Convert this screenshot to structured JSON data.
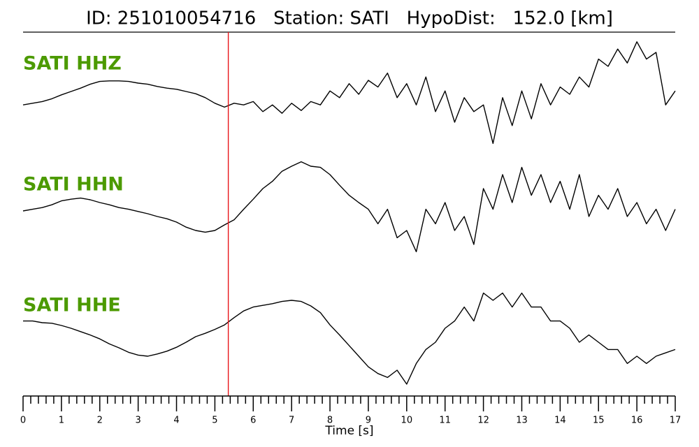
{
  "chart_data": {
    "type": "line",
    "title": "ID: 251010054716   Station: SATI   HypoDist:   152.0 [km]",
    "x_label": "Time [s]",
    "xlim": [
      0,
      17
    ],
    "ylim": [
      -1,
      1
    ],
    "xticks": [
      0,
      1,
      2,
      3,
      4,
      5,
      6,
      7,
      8,
      9,
      10,
      11,
      12,
      13,
      14,
      15,
      16,
      17
    ],
    "xminorticks": [
      0.2,
      0.4,
      0.6,
      0.8,
      1.2,
      1.4,
      1.6,
      1.8,
      2.2,
      2.4,
      2.6,
      2.8,
      3.2,
      3.4,
      3.6,
      3.8,
      4.2,
      4.4,
      4.6,
      4.8,
      5.2,
      5.4,
      5.6,
      5.8,
      6.2,
      6.4,
      6.6,
      6.8,
      7.2,
      7.4,
      7.6,
      7.8,
      8.2,
      8.4,
      8.6,
      8.8,
      9.2,
      9.4,
      9.6,
      9.8,
      10.2,
      10.4,
      10.6,
      10.8,
      11.2,
      11.4,
      11.6,
      11.8,
      12.2,
      12.4,
      12.6,
      12.8,
      13.2,
      13.4,
      13.6,
      13.8,
      14.2,
      14.4,
      14.6,
      14.8,
      15.2,
      15.4,
      15.6,
      15.8,
      16.2,
      16.4,
      16.6,
      16.8
    ],
    "pick": {
      "x": 5.35,
      "color": "#e8161b"
    },
    "label_color": "#4c9a00",
    "x": [
      0,
      0.25,
      0.5,
      0.75,
      1,
      1.25,
      1.5,
      1.75,
      2,
      2.25,
      2.5,
      2.75,
      3,
      3.25,
      3.5,
      3.75,
      4,
      4.25,
      4.5,
      4.75,
      5,
      5.25,
      5.5,
      5.75,
      6,
      6.25,
      6.5,
      6.75,
      7,
      7.25,
      7.5,
      7.75,
      8,
      8.25,
      8.5,
      8.75,
      9,
      9.25,
      9.5,
      9.75,
      10,
      10.25,
      10.5,
      10.75,
      11,
      11.25,
      11.5,
      11.75,
      12,
      12.25,
      12.5,
      12.75,
      13,
      13.25,
      13.5,
      13.75,
      14,
      14.25,
      14.5,
      14.75,
      15,
      15.25,
      15.5,
      15.75,
      16,
      16.25,
      16.5,
      16.75,
      17
    ],
    "series": [
      {
        "name": "SATI HHZ",
        "color": "#000000",
        "values": [
          -0.19,
          -0.16,
          -0.13,
          -0.08,
          -0.01,
          0.05,
          0.11,
          0.18,
          0.23,
          0.24,
          0.24,
          0.23,
          0.2,
          0.18,
          0.14,
          0.11,
          0.09,
          0.05,
          0.01,
          -0.06,
          -0.16,
          -0.23,
          -0.16,
          -0.19,
          -0.13,
          -0.31,
          -0.19,
          -0.34,
          -0.16,
          -0.29,
          -0.13,
          -0.19,
          0.06,
          -0.06,
          0.19,
          0,
          0.25,
          0.13,
          0.38,
          -0.06,
          0.19,
          -0.19,
          0.31,
          -0.31,
          0.06,
          -0.5,
          -0.06,
          -0.31,
          -0.19,
          -0.88,
          -0.06,
          -0.56,
          0.06,
          -0.44,
          0.19,
          -0.19,
          0.13,
          0,
          0.31,
          0.13,
          0.63,
          0.5,
          0.81,
          0.56,
          0.94,
          0.63,
          0.75,
          -0.19,
          0.06
        ]
      },
      {
        "name": "SATI HHN",
        "color": "#000000",
        "values": [
          0,
          0.03,
          0.06,
          0.11,
          0.18,
          0.21,
          0.23,
          0.2,
          0.15,
          0.11,
          0.06,
          0.03,
          -0.01,
          -0.05,
          -0.1,
          -0.14,
          -0.2,
          -0.29,
          -0.35,
          -0.38,
          -0.35,
          -0.25,
          -0.16,
          0.03,
          0.21,
          0.4,
          0.53,
          0.71,
          0.8,
          0.88,
          0.8,
          0.78,
          0.65,
          0.46,
          0.28,
          0.15,
          0.03,
          -0.23,
          0.03,
          -0.48,
          -0.35,
          -0.73,
          0.03,
          -0.23,
          0.15,
          -0.35,
          -0.1,
          -0.6,
          0.4,
          0.03,
          0.65,
          0.15,
          0.78,
          0.28,
          0.65,
          0.15,
          0.53,
          0.03,
          0.65,
          -0.1,
          0.28,
          0.03,
          0.4,
          -0.1,
          0.15,
          -0.23,
          0.03,
          -0.35,
          0.03
        ]
      },
      {
        "name": "SATI HHE",
        "color": "#000000",
        "values": [
          0.28,
          0.28,
          0.25,
          0.24,
          0.2,
          0.15,
          0.09,
          0.03,
          -0.04,
          -0.13,
          -0.2,
          -0.28,
          -0.33,
          -0.35,
          -0.31,
          -0.26,
          -0.19,
          -0.1,
          0,
          0.06,
          0.13,
          0.21,
          0.34,
          0.46,
          0.53,
          0.56,
          0.59,
          0.63,
          0.65,
          0.63,
          0.55,
          0.43,
          0.21,
          0.03,
          -0.16,
          -0.35,
          -0.54,
          -0.66,
          -0.73,
          -0.6,
          -0.85,
          -0.48,
          -0.23,
          -0.1,
          0.15,
          0.28,
          0.53,
          0.28,
          0.78,
          0.65,
          0.78,
          0.53,
          0.78,
          0.53,
          0.53,
          0.28,
          0.28,
          0.15,
          -0.1,
          0.03,
          -0.1,
          -0.23,
          -0.23,
          -0.48,
          -0.35,
          -0.48,
          -0.35,
          -0.29,
          -0.23
        ]
      }
    ]
  }
}
